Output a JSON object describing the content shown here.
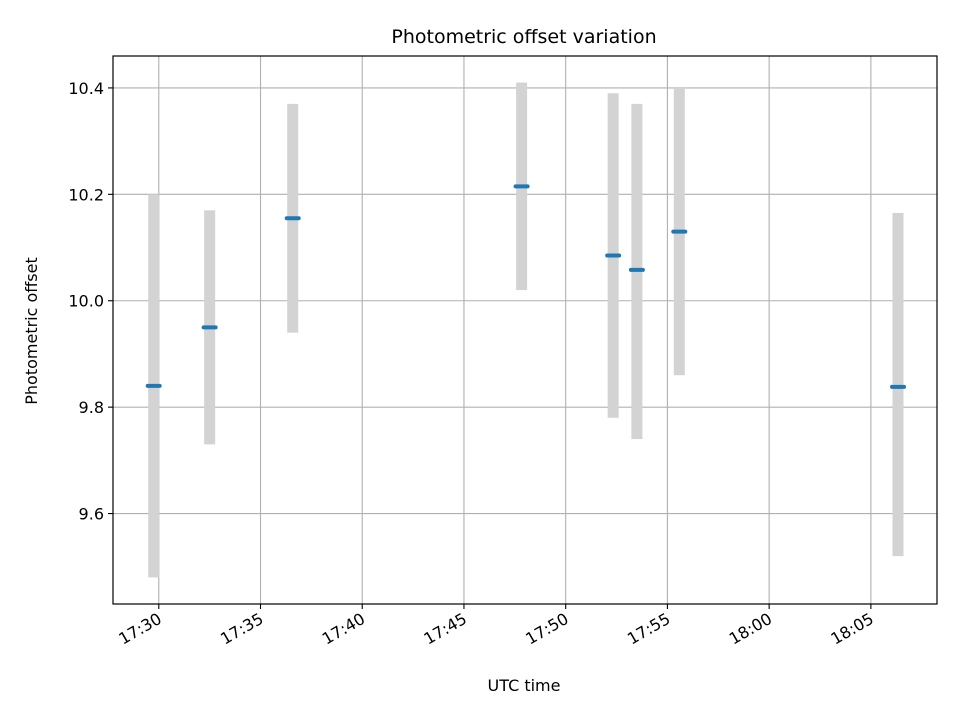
{
  "chart_data": {
    "type": "scatter",
    "title": "Photometric offset variation",
    "xlabel": "UTC time",
    "ylabel": "Photometric offset",
    "grid": true,
    "xlim": [
      "17:27:45",
      "18:08:15"
    ],
    "ylim": [
      9.43,
      10.46
    ],
    "x_ticks": [
      "17:30",
      "17:35",
      "17:40",
      "17:45",
      "17:50",
      "17:55",
      "18:00",
      "18:05"
    ],
    "y_ticks": [
      "9.6",
      "9.8",
      "10.0",
      "10.2",
      "10.4"
    ],
    "colors": {
      "point": "#1f77b4",
      "errorbar": "#d3d3d3",
      "grid": "#b0b0b0"
    },
    "points": [
      {
        "x": "17:29:45",
        "y": 9.84,
        "err_low": 9.48,
        "err_high": 10.2
      },
      {
        "x": "17:32:30",
        "y": 9.95,
        "err_low": 9.73,
        "err_high": 10.17
      },
      {
        "x": "17:36:35",
        "y": 10.155,
        "err_low": 9.94,
        "err_high": 10.37
      },
      {
        "x": "17:47:50",
        "y": 10.215,
        "err_low": 10.02,
        "err_high": 10.41
      },
      {
        "x": "17:52:20",
        "y": 10.085,
        "err_low": 9.78,
        "err_high": 10.39
      },
      {
        "x": "17:53:30",
        "y": 10.058,
        "err_low": 9.74,
        "err_high": 10.37
      },
      {
        "x": "17:55:35",
        "y": 10.13,
        "err_low": 9.86,
        "err_high": 10.4
      },
      {
        "x": "18:06:20",
        "y": 9.838,
        "err_low": 9.52,
        "err_high": 10.165
      }
    ]
  }
}
